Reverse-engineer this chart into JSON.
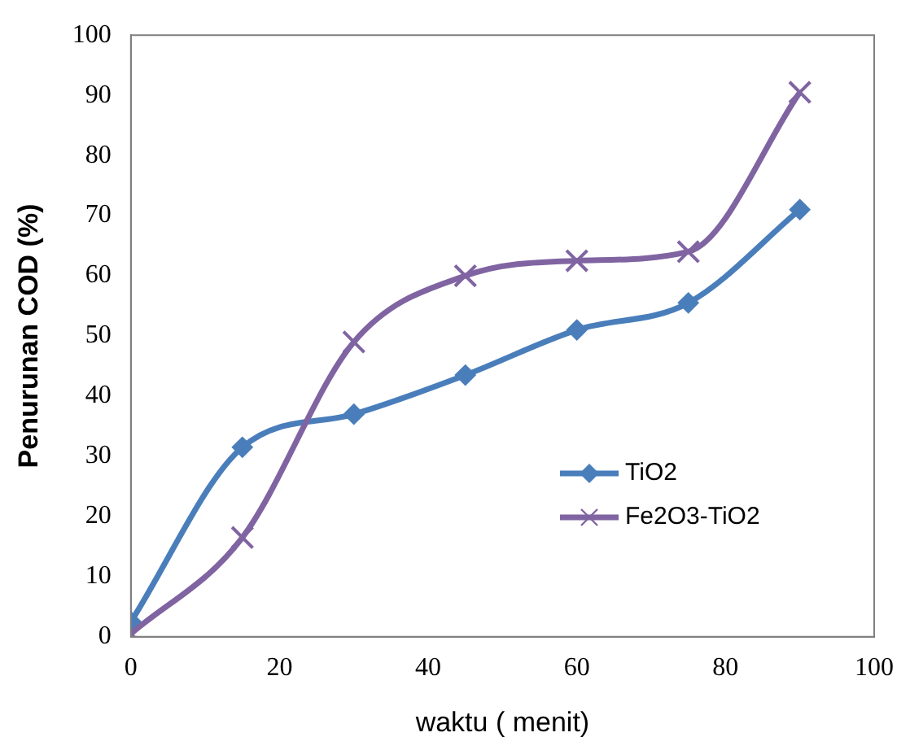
{
  "chart_data": {
    "type": "line",
    "xlabel": "waktu ( menit)",
    "ylabel": "Penurunan COD (%)",
    "x": [
      0,
      15,
      30,
      45,
      60,
      75,
      90
    ],
    "series": [
      {
        "name": "TiO2",
        "color": "#4a7ebb",
        "marker": "diamond",
        "values": [
          2.5,
          31.5,
          37,
          43.5,
          51,
          55.5,
          71
        ]
      },
      {
        "name": "Fe2O3-TiO2",
        "color": "#8064a2",
        "marker": "cross",
        "values": [
          0.5,
          16.5,
          49,
          60,
          62.5,
          64,
          90.5
        ]
      }
    ],
    "xlim": [
      0,
      100
    ],
    "xticks": [
      0,
      20,
      40,
      60,
      80,
      100
    ],
    "ylim": [
      0,
      100
    ],
    "yticks": [
      0,
      10,
      20,
      30,
      40,
      50,
      60,
      70,
      80,
      90,
      100
    ],
    "grid": false,
    "legend": "bottom right"
  }
}
